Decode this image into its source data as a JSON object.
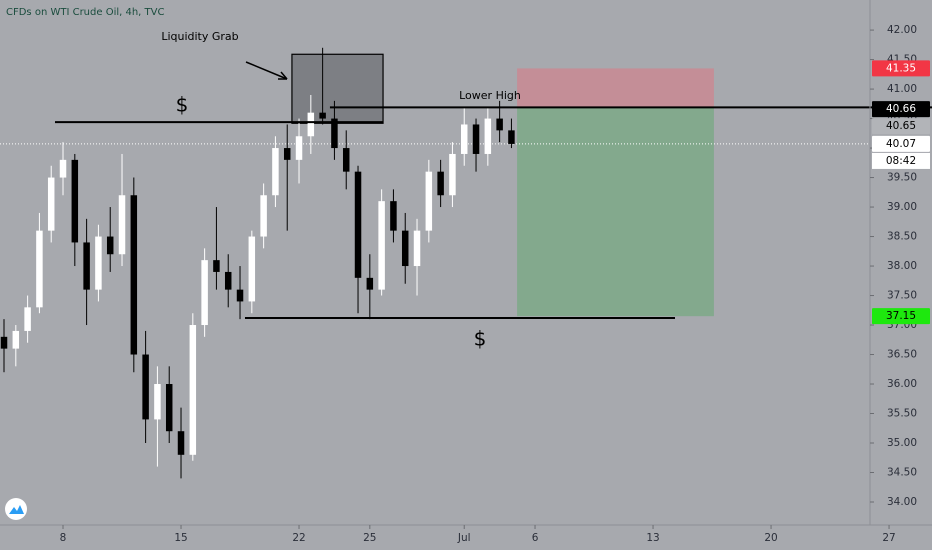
{
  "chart_data": {
    "type": "candlestick",
    "title": "CFDs on WTI Crude Oil, 4h, TVC",
    "x": [
      -2.5,
      -2,
      -1.5,
      -1,
      -0.5,
      0,
      0.5,
      1,
      1.5,
      2,
      2.5,
      3,
      3.5,
      4,
      4.5,
      5,
      5.5,
      6,
      6.5,
      7,
      7.5,
      8,
      8.5,
      9,
      9.5,
      10,
      10.5,
      11,
      11.5,
      12,
      12.5,
      13,
      13.5,
      14,
      14.5,
      15,
      15.5,
      16,
      16.5,
      17,
      17.5,
      18,
      18.5,
      19
    ],
    "open": [
      36.8,
      36.6,
      36.9,
      37.3,
      38.6,
      39.5,
      39.8,
      38.4,
      37.6,
      38.5,
      38.2,
      39.2,
      36.5,
      35.4,
      36.0,
      35.2,
      34.8,
      37.0,
      38.1,
      37.9,
      37.6,
      37.4,
      38.5,
      39.2,
      40.0,
      39.8,
      40.2,
      40.6,
      40.5,
      40.0,
      39.6,
      37.8,
      37.6,
      39.1,
      38.6,
      38.0,
      38.6,
      39.6,
      39.2,
      39.9,
      40.4,
      39.9,
      40.5,
      40.3
    ],
    "high": [
      37.1,
      37.0,
      37.5,
      38.9,
      39.7,
      40.1,
      39.9,
      38.8,
      38.7,
      39.0,
      39.9,
      39.5,
      36.9,
      36.3,
      36.3,
      35.6,
      37.2,
      38.3,
      39.0,
      38.2,
      38.0,
      38.6,
      39.4,
      40.2,
      40.4,
      40.5,
      40.9,
      41.7,
      40.8,
      40.3,
      39.7,
      38.2,
      39.3,
      39.3,
      38.9,
      38.8,
      39.8,
      39.8,
      40.1,
      40.7,
      40.5,
      40.7,
      40.8,
      40.5
    ],
    "low": [
      36.2,
      36.3,
      36.7,
      37.2,
      38.4,
      39.2,
      38.0,
      37.0,
      37.4,
      37.9,
      38.0,
      36.2,
      35.0,
      34.6,
      35.0,
      34.4,
      34.7,
      36.8,
      37.6,
      37.3,
      37.1,
      37.2,
      38.3,
      39.0,
      38.6,
      39.4,
      39.9,
      40.4,
      39.8,
      39.3,
      37.2,
      37.1,
      37.5,
      38.4,
      37.7,
      37.5,
      38.4,
      39.0,
      39.0,
      39.7,
      39.6,
      39.7,
      40.1,
      40.0
    ],
    "close": [
      36.6,
      36.9,
      37.3,
      38.6,
      39.5,
      39.8,
      38.4,
      37.6,
      38.5,
      38.2,
      39.2,
      36.5,
      35.4,
      36.0,
      35.2,
      34.8,
      37.0,
      38.1,
      37.9,
      37.6,
      37.4,
      38.5,
      39.2,
      40.0,
      39.8,
      40.2,
      40.6,
      40.5,
      40.0,
      39.6,
      37.8,
      37.6,
      39.1,
      38.6,
      38.0,
      38.6,
      39.6,
      39.2,
      39.9,
      40.4,
      39.9,
      40.5,
      40.3,
      40.07
    ],
    "up_color": "#ffffff",
    "down_color": "#000000",
    "xlim": [
      -2.67,
      36.82
    ],
    "xticks": [
      {
        "value": 0,
        "label": "8"
      },
      {
        "value": 5,
        "label": "15"
      },
      {
        "value": 10,
        "label": "22"
      },
      {
        "value": 13,
        "label": "25"
      },
      {
        "value": 17,
        "label": "Jul"
      },
      {
        "value": 20,
        "label": "6"
      },
      {
        "value": 25,
        "label": "13"
      },
      {
        "value": 30,
        "label": "20"
      },
      {
        "value": 35,
        "label": "27"
      }
    ],
    "ylim": [
      33.61,
      42.51
    ],
    "yticks": [
      {
        "value": 34,
        "label": "34.00"
      },
      {
        "value": 34.5,
        "label": "34.50"
      },
      {
        "value": 35,
        "label": "35.00"
      },
      {
        "value": 35.5,
        "label": "35.50"
      },
      {
        "value": 36,
        "label": "36.00"
      },
      {
        "value": 36.5,
        "label": "36.50"
      },
      {
        "value": 37,
        "label": "37.00"
      },
      {
        "value": 37.5,
        "label": "37.50"
      },
      {
        "value": 38,
        "label": "38.00"
      },
      {
        "value": 38.5,
        "label": "38.50"
      },
      {
        "value": 39,
        "label": "39.00"
      },
      {
        "value": 39.5,
        "label": "39.50"
      },
      {
        "value": 40,
        "label": "40.00"
      },
      {
        "value": 40.5,
        "label": "40.50"
      },
      {
        "value": 41,
        "label": "41.00"
      },
      {
        "value": 41.5,
        "label": "41.50"
      },
      {
        "value": 42,
        "label": "42.00"
      }
    ],
    "last_price": 40.07,
    "countdown": "08:42",
    "lines": [
      {
        "y": 40.44,
        "x": [
          -0.34,
          13.56
        ]
      },
      {
        "y": 40.69,
        "x": [
          11.31,
          36.82
        ]
      },
      {
        "y": 37.12,
        "x": [
          7.71,
          25.93
        ]
      }
    ],
    "box": {
      "x": [
        9.7,
        13.56
      ],
      "y": [
        40.42,
        41.59
      ]
    },
    "position": {
      "x": [
        19.24,
        27.58
      ],
      "stop": 41.35,
      "entry": 40.68,
      "target": 37.15
    },
    "price_labels": [
      {
        "value": 41.35,
        "color": "#f23645"
      },
      {
        "value": 40.66,
        "color": "#000000"
      },
      {
        "value": 40.65,
        "color": "#b2b4b8"
      },
      {
        "value": 40.07,
        "color": "#ffffff"
      },
      {
        "value": 37.15,
        "color": "#1ee80e"
      }
    ],
    "annotations": [
      "Liquidity Grab",
      "$",
      "Lower High",
      "$"
    ]
  }
}
